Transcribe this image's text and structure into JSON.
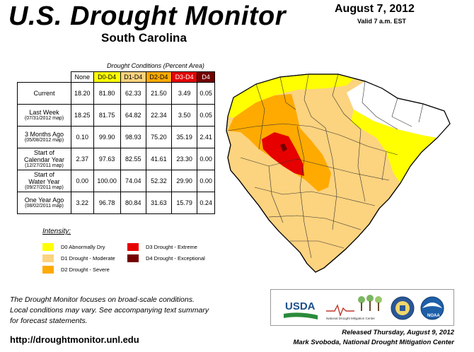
{
  "header": {
    "title": "U.S. Drought Monitor",
    "state": "South Carolina",
    "date": "August 7, 2012",
    "valid": "Valid 7 a.m. EST"
  },
  "table": {
    "caption": "Drought Conditions (Percent Area)",
    "columns": [
      "None",
      "D0-D4",
      "D1-D4",
      "D2-D4",
      "D3-D4",
      "D4"
    ],
    "rows": [
      {
        "label": "Current",
        "sub": "",
        "values": [
          "18.20",
          "81.80",
          "62.33",
          "21.50",
          "3.49",
          "0.05"
        ]
      },
      {
        "label": "Last Week",
        "sub": "(07/31/2012 map)",
        "values": [
          "18.25",
          "81.75",
          "64.82",
          "22.34",
          "3.50",
          "0.05"
        ]
      },
      {
        "label": "3 Months Ago",
        "sub": "(05/08/2012 map)",
        "values": [
          "0.10",
          "99.90",
          "98.93",
          "75.20",
          "35.19",
          "2.41"
        ]
      },
      {
        "label": "Start of",
        "label2": "Calendar Year",
        "sub": "(12/27/2011 map)",
        "values": [
          "2.37",
          "97.63",
          "82.55",
          "41.61",
          "23.30",
          "0.00"
        ]
      },
      {
        "label": "Start of",
        "label2": "Water Year",
        "sub": "(09/27/2011 map)",
        "values": [
          "0.00",
          "100.00",
          "74.04",
          "52.32",
          "29.90",
          "0.00"
        ]
      },
      {
        "label": "One Year Ago",
        "sub": "(08/02/2011 map)",
        "values": [
          "3.22",
          "96.78",
          "80.84",
          "31.63",
          "15.79",
          "0.24"
        ]
      }
    ]
  },
  "legend": {
    "title": "Intensity:",
    "items": [
      {
        "label": "D0 Abnormally Dry",
        "color": "#ffff00"
      },
      {
        "label": "D1 Drought - Moderate",
        "color": "#fcd37f"
      },
      {
        "label": "D2 Drought - Severe",
        "color": "#ffaa00"
      },
      {
        "label": "D3 Drought - Extreme",
        "color": "#e60000"
      },
      {
        "label": "D4 Drought - Exceptional",
        "color": "#730000"
      }
    ]
  },
  "footer": {
    "note_line1": "The Drought Monitor focuses on broad-scale conditions.",
    "note_line2": "Local conditions may vary. See accompanying text summary",
    "note_line3": "for forecast statements.",
    "url": "http://droughtmonitor.unl.edu",
    "released": "Released Thursday, August 9, 2012",
    "author": "Mark Svoboda, National Drought Mitigation Center"
  },
  "logos": {
    "usda": "USDA",
    "ndmc": "National Drought Mitigation Center",
    "doc_icon": "commerce-seal-icon",
    "noaa": "NOAA"
  },
  "map_colors": {
    "none": "#ffffff",
    "d0": "#ffff00",
    "d1": "#fcd37f",
    "d2": "#ffaa00",
    "d3": "#e60000",
    "d4": "#730000"
  }
}
